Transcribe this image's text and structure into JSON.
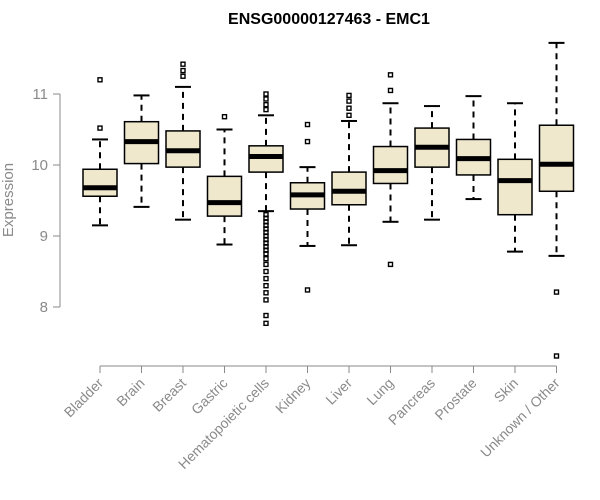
{
  "chart_data": {
    "type": "boxplot",
    "title": "ENSG00000127463 - EMC1",
    "xlabel": "",
    "ylabel": "Expression",
    "ylim": [
      7.2,
      12.0
    ],
    "yticks": [
      8,
      9,
      10,
      11
    ],
    "grid": false,
    "legend": "none",
    "colors": {
      "box_fill": "#efe8cd",
      "box_stroke": "#000000",
      "axis": "#8a8a8a",
      "title": "#000000"
    },
    "categories": [
      "Bladder",
      "Brain",
      "Breast",
      "Gastric",
      "Hematopoietic cells",
      "Kidney",
      "Liver",
      "Lung",
      "Pancreas",
      "Prostate",
      "Skin",
      "Unknown / Other"
    ],
    "boxes": [
      {
        "whislo": 9.15,
        "q1": 9.56,
        "med": 9.68,
        "q3": 9.94,
        "whishi": 10.36,
        "fliers": [
          10.52,
          11.2
        ]
      },
      {
        "whislo": 9.41,
        "q1": 10.02,
        "med": 10.33,
        "q3": 10.61,
        "whishi": 10.98,
        "fliers": []
      },
      {
        "whislo": 9.23,
        "q1": 9.97,
        "med": 10.2,
        "q3": 10.48,
        "whishi": 11.1,
        "fliers": [
          11.25,
          11.33,
          11.42
        ]
      },
      {
        "whislo": 8.88,
        "q1": 9.28,
        "med": 9.47,
        "q3": 9.84,
        "whishi": 10.5,
        "fliers": [
          10.68
        ]
      },
      {
        "whislo": 9.35,
        "q1": 9.9,
        "med": 10.12,
        "q3": 10.27,
        "whishi": 10.7,
        "fliers": [
          10.78,
          10.85,
          10.93,
          11.0,
          9.3,
          9.25,
          9.2,
          9.15,
          9.1,
          9.05,
          9.0,
          8.95,
          8.9,
          8.85,
          8.8,
          8.75,
          8.68,
          8.6,
          8.5,
          8.4,
          8.3,
          8.2,
          8.1,
          7.88,
          7.77
        ]
      },
      {
        "whislo": 8.86,
        "q1": 9.38,
        "med": 9.58,
        "q3": 9.75,
        "whishi": 9.97,
        "fliers": [
          10.33,
          10.57,
          8.24
        ]
      },
      {
        "whislo": 8.87,
        "q1": 9.44,
        "med": 9.63,
        "q3": 9.9,
        "whishi": 10.62,
        "fliers": [
          10.7,
          10.8,
          10.9,
          10.98
        ]
      },
      {
        "whislo": 9.2,
        "q1": 9.74,
        "med": 9.92,
        "q3": 10.26,
        "whishi": 10.87,
        "fliers": [
          11.05,
          11.27,
          8.6
        ]
      },
      {
        "whislo": 9.23,
        "q1": 9.97,
        "med": 10.25,
        "q3": 10.52,
        "whishi": 10.83,
        "fliers": []
      },
      {
        "whislo": 9.52,
        "q1": 9.86,
        "med": 10.09,
        "q3": 10.36,
        "whishi": 10.97,
        "fliers": []
      },
      {
        "whislo": 8.78,
        "q1": 9.3,
        "med": 9.78,
        "q3": 10.08,
        "whishi": 10.87,
        "fliers": []
      },
      {
        "whislo": 8.72,
        "q1": 9.63,
        "med": 10.01,
        "q3": 10.56,
        "whishi": 11.72,
        "fliers": [
          8.21,
          7.31
        ]
      }
    ]
  }
}
